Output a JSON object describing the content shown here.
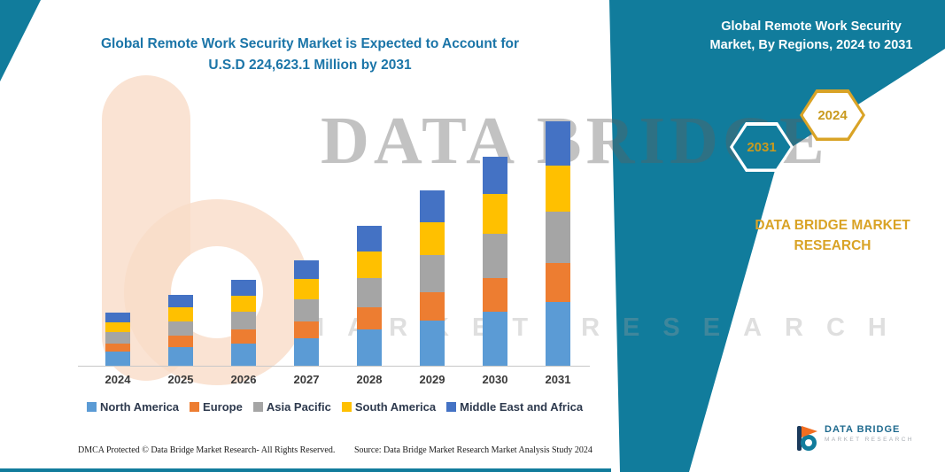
{
  "colors": {
    "teal": "#117C9C",
    "gold": "#D9A326",
    "title_blue": "#1B75A8",
    "legend_text": "#2E3A4E"
  },
  "left_title": {
    "line1": "Global Remote Work Security Market is Expected to Account for",
    "line2": "U.S.D 224,623.1 Million by 2031"
  },
  "ribbon": {
    "title_line1": "Global Remote Work Security",
    "title_line2": "Market, By Regions, 2024 to 2031",
    "hexagon_back": "2031",
    "hexagon_front": "2024",
    "brand": "DATA BRIDGE MARKET RESEARCH"
  },
  "watermark": {
    "big": "DATA BRIDGE",
    "sub": "MARKET RESEARCH"
  },
  "footer": {
    "dmca": "DMCA Protected © Data Bridge Market Research-  All Rights Reserved.",
    "source": "Source: Data Bridge Market Research  Market Analysis Study 2024"
  },
  "logo": {
    "name": "DATA BRIDGE",
    "tagline": "MARKET RESEARCH"
  },
  "chart_data": {
    "type": "bar",
    "subtype": "stacked",
    "title": "Global Remote Work Security Market is Expected to Account for U.S.D 224,623.1 Million by 2031",
    "xlabel": "",
    "ylabel": "",
    "legend_position": "bottom",
    "grid": false,
    "ylim": [
      0,
      230000
    ],
    "categories": [
      "2024",
      "2025",
      "2026",
      "2027",
      "2028",
      "2029",
      "2030",
      "2031"
    ],
    "series": [
      {
        "name": "North America",
        "color": "#5B9BD5",
        "values": [
          12700,
          16900,
          20500,
          25200,
          33400,
          41900,
          50000,
          58400
        ]
      },
      {
        "name": "Europe",
        "color": "#ED7D31",
        "values": [
          7800,
          10400,
          12600,
          15500,
          20600,
          25800,
          30800,
          35900
        ]
      },
      {
        "name": "Asia Pacific",
        "color": "#A5A5A5",
        "values": [
          10300,
          13700,
          16600,
          20400,
          27000,
          33900,
          40400,
          47200
        ]
      },
      {
        "name": "South America",
        "color": "#FFC000",
        "values": [
          9300,
          12400,
          15000,
          18400,
          24400,
          30600,
          36500,
          42700
        ]
      },
      {
        "name": "Middle East and Africa",
        "color": "#4472C4",
        "values": [
          8800,
          11700,
          14300,
          17400,
          23200,
          29000,
          34500,
          40423.1
        ]
      }
    ],
    "totals_estimated": [
      48900,
      65100,
      79000,
      96900,
      128600,
      161200,
      192200,
      224623.1
    ]
  }
}
